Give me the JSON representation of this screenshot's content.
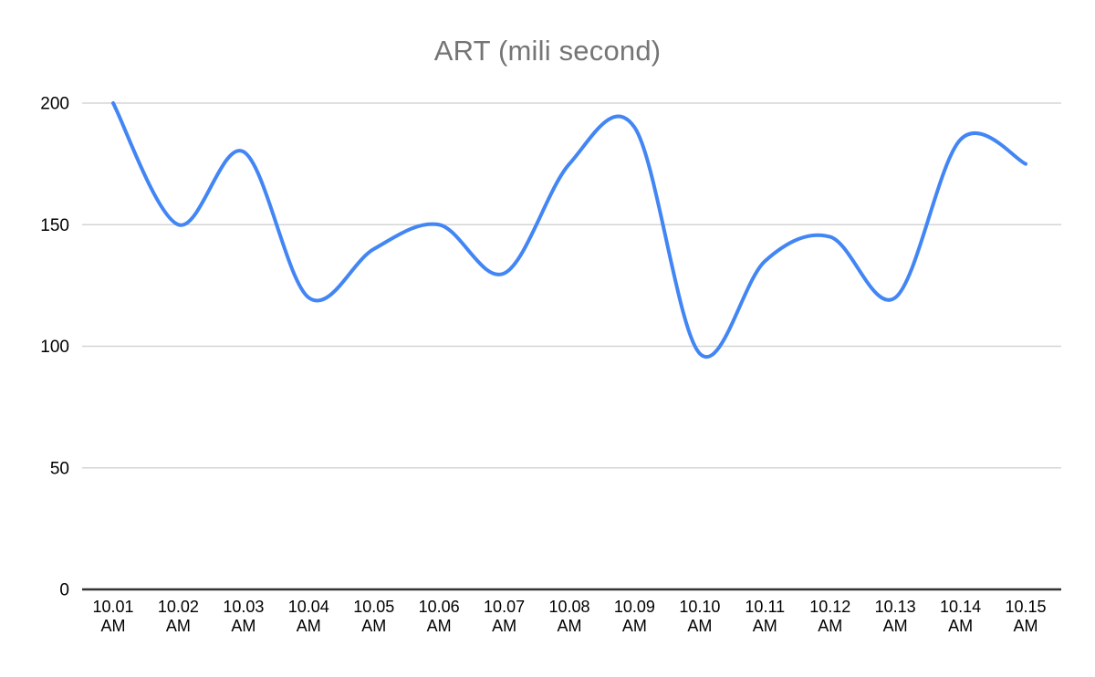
{
  "chart": {
    "title": "ART (mili second)",
    "colors": {
      "line": "#4285f4",
      "grid": "#d5d5d5",
      "axis_baseline": "#333333",
      "title": "#757575",
      "tick_text": "#000000",
      "background": "#ffffff"
    }
  },
  "chart_data": {
    "type": "line",
    "title": "ART (mili second)",
    "categories": [
      "10.01 AM",
      "10.02 AM",
      "10.03 AM",
      "10.04 AM",
      "10.05 AM",
      "10.06 AM",
      "10.07 AM",
      "10.08 AM",
      "10.09 AM",
      "10.10 AM",
      "10.11 AM",
      "10.12 AM",
      "10.13 AM",
      "10.14 AM",
      "10.15 AM"
    ],
    "series": [
      {
        "name": "ART",
        "values": [
          200,
          150,
          180,
          120,
          140,
          150,
          130,
          175,
          190,
          97,
          135,
          145,
          120,
          185,
          175
        ]
      }
    ],
    "xlabel": "",
    "ylabel": "",
    "ylim": [
      0,
      200
    ],
    "yticks": [
      0,
      50,
      100,
      150,
      200
    ],
    "grid": true,
    "legend": "none",
    "smooth": true,
    "line_color": "#4285f4"
  }
}
